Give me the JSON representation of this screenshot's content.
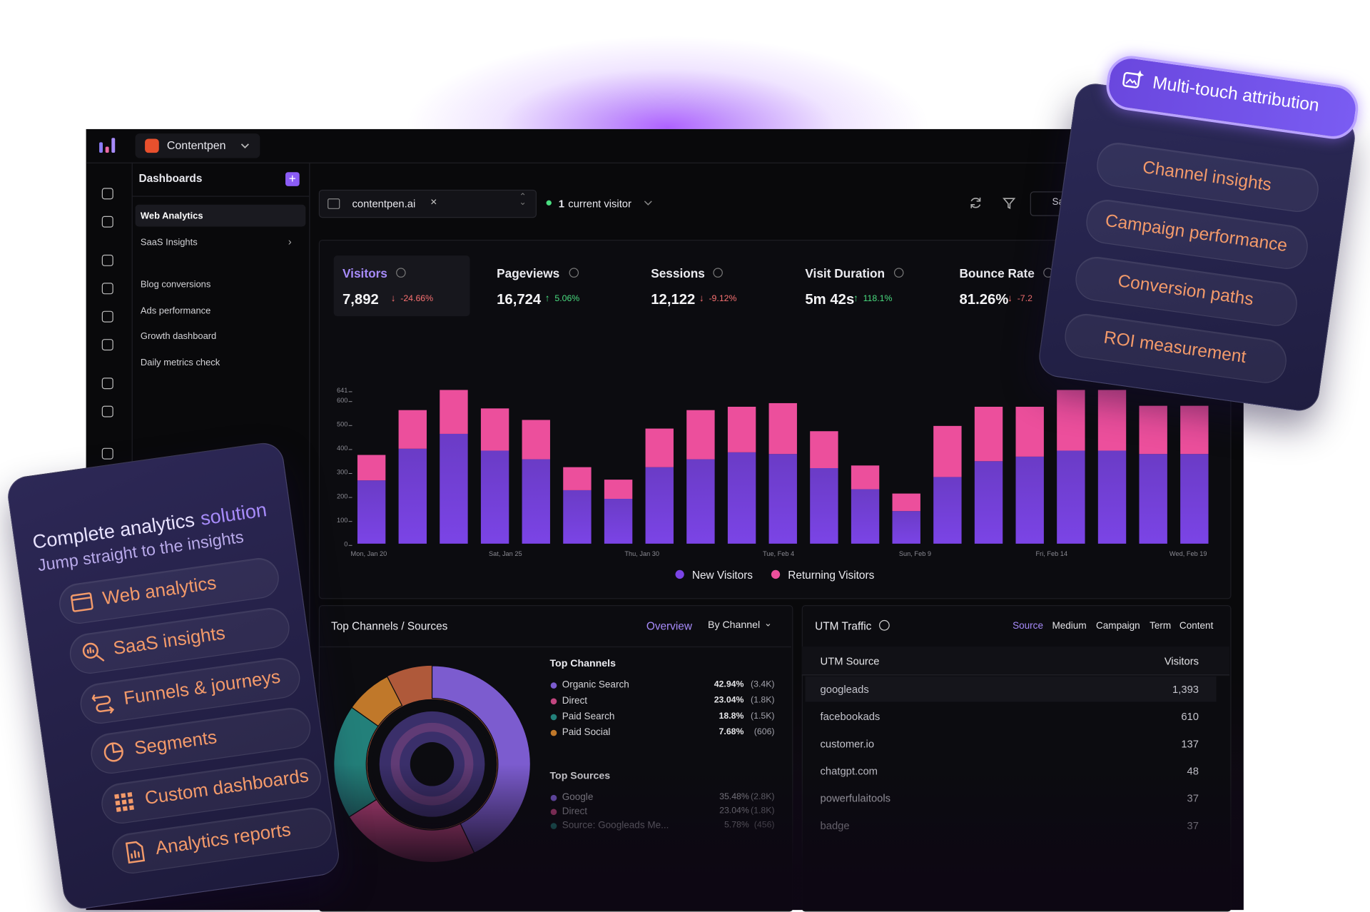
{
  "brand": "Contentpen",
  "sidebar": {
    "title": "Dashboards",
    "items": [
      "Web Analytics",
      "SaaS Insights",
      "Blog conversions",
      "Ads performance",
      "Growth dashboard",
      "Daily metrics check"
    ]
  },
  "toolbar": {
    "site": "contentpen.ai",
    "visitor_count": "1",
    "visitor_label": "current visitor",
    "save": "Sa"
  },
  "metrics": [
    {
      "label": "Visitors",
      "value": "7,892",
      "change": "-24.66%",
      "direction": "down"
    },
    {
      "label": "Pageviews",
      "value": "16,724",
      "change": "5.06%",
      "direction": "up"
    },
    {
      "label": "Sessions",
      "value": "12,122",
      "change": "-9.12%",
      "direction": "down"
    },
    {
      "label": "Visit Duration",
      "value": "5m 42s",
      "change": "118.1%",
      "direction": "up"
    },
    {
      "label": "Bounce Rate",
      "value": "81.26%",
      "change": "-7.2",
      "direction": "down"
    }
  ],
  "chart_data": {
    "type": "bar",
    "stacked": true,
    "categories": [
      null,
      null,
      null,
      null,
      null,
      null,
      null,
      null,
      null,
      null,
      null,
      null,
      null,
      null,
      null,
      null,
      null,
      null,
      null,
      null,
      null
    ],
    "x_tick_labels": [
      "Mon, Jan 20",
      "Sat, Jan 25",
      "Thu, Jan 30",
      "Tue, Feb 4",
      "Sun, Feb 9",
      "Fri, Feb 14",
      "Wed, Feb 19"
    ],
    "series": [
      {
        "name": "New Visitors",
        "color": "#7b44e6",
        "values": [
          264,
          396,
          458,
          388,
          352,
          223,
          187,
          319,
          352,
          381,
          374,
          315,
          227,
          136,
          278,
          344,
          363,
          388,
          388,
          374,
          374
        ]
      },
      {
        "name": "Returning Visitors",
        "color": "#ec4f9c",
        "values": [
          106,
          161,
          183,
          176,
          164,
          96,
          80,
          161,
          205,
          190,
          212,
          154,
          99,
          73,
          213,
          227,
          208,
          253,
          253,
          201,
          201
        ]
      }
    ],
    "ylim": [
      0,
      641
    ],
    "yticks": [
      0,
      100,
      200,
      300,
      400,
      500,
      600,
      641
    ],
    "grid": false,
    "legend": "bottom"
  },
  "channels": {
    "title": "Top Channels / Sources",
    "tabs": [
      "Overview",
      "By Channel"
    ],
    "top_channels": {
      "title": "Top Channels",
      "names": [
        "Organic Search",
        "Direct",
        "Paid Search",
        "Paid Social"
      ],
      "values": [
        42.94,
        23.04,
        18.8,
        7.68
      ],
      "value_labels": [
        "42.94%",
        "23.04%",
        "18.8%",
        "7.68%"
      ],
      "counts": [
        "(3.4K)",
        "(1.8K)",
        "(1.5K)",
        "(606)"
      ],
      "colors": [
        "#7c5ccf",
        "#c2457f",
        "#23807a",
        "#c0782a"
      ]
    },
    "top_sources": {
      "title": "Top Sources",
      "names": [
        "Google",
        "Direct",
        "Source: Googleads Me..."
      ],
      "shares": [
        "35.48%",
        "23.04%",
        "5.78%"
      ],
      "counts": [
        "(2.8K)",
        "(1.8K)",
        "(456)"
      ]
    }
  },
  "utm": {
    "title": "UTM Traffic",
    "tabs": [
      "Source",
      "Medium",
      "Campaign",
      "Term",
      "Content"
    ],
    "columns": [
      "UTM Source",
      "Visitors"
    ],
    "rows": [
      [
        "googleads",
        "1,393"
      ],
      [
        "facebookads",
        "610"
      ],
      [
        "customer.io",
        "137"
      ],
      [
        "chatgpt.com",
        "48"
      ],
      [
        "powerfulaitools",
        "37"
      ],
      [
        "badge",
        "37"
      ]
    ]
  },
  "left_card": {
    "title": "Complete analytics",
    "title_accent": "solution",
    "subtitle": "Jump straight to the insights",
    "items": [
      "Web analytics",
      "SaaS insights",
      "Funnels & journeys",
      "Segments",
      "Custom dashboards",
      "Analytics reports"
    ]
  },
  "right_card": {
    "title": "Multi-touch attribution",
    "items": [
      "Channel insights",
      "Campaign performance",
      "Conversion paths",
      "ROI measurement"
    ]
  }
}
